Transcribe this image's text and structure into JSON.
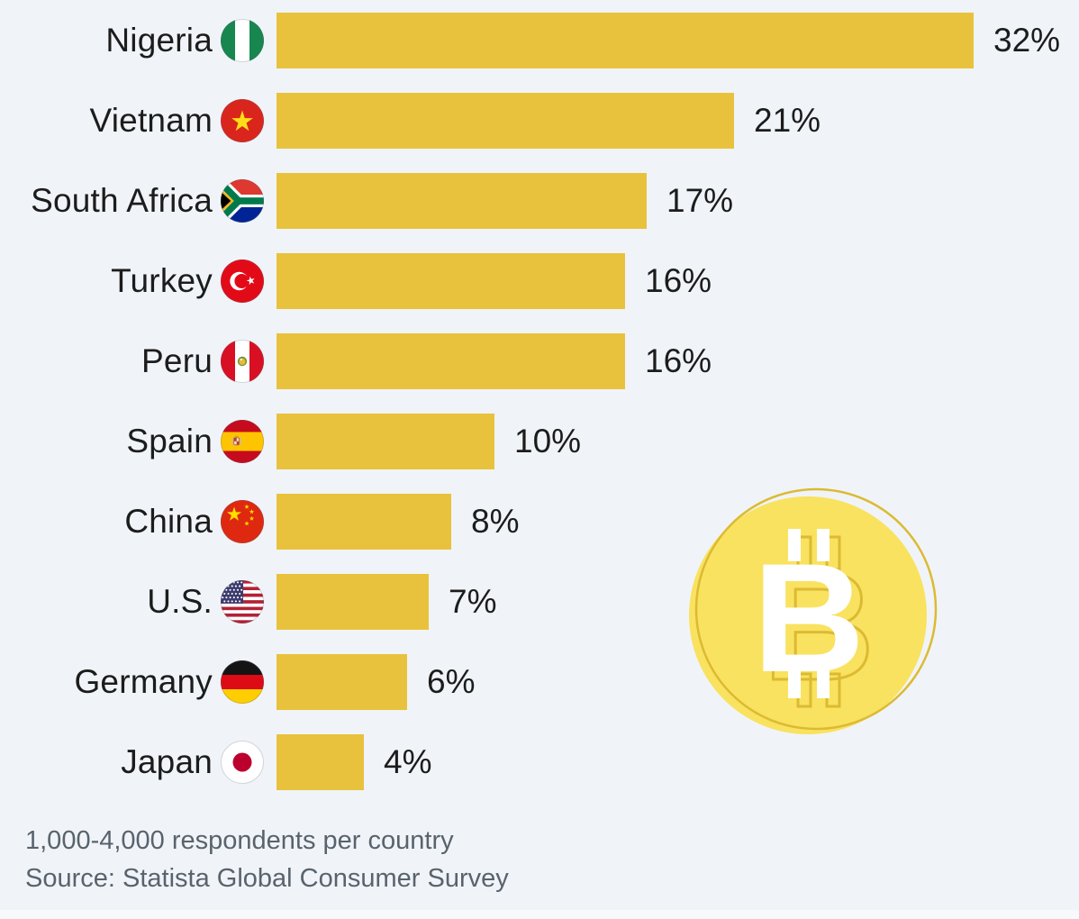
{
  "background_color": "#f0f4f8",
  "chart_data": {
    "type": "bar",
    "orientation": "horizontal",
    "unit": "%",
    "categories": [
      "Nigeria",
      "Vietnam",
      "South Africa",
      "Turkey",
      "Peru",
      "Spain",
      "China",
      "U.S.",
      "Germany",
      "Japan"
    ],
    "values": [
      32,
      21,
      17,
      16,
      16,
      10,
      8,
      7,
      6,
      4
    ],
    "value_labels": [
      "32%",
      "21%",
      "17%",
      "16%",
      "16%",
      "10%",
      "8%",
      "7%",
      "6%",
      "4%"
    ],
    "flag_icons": [
      "flag-nigeria-icon",
      "flag-vietnam-icon",
      "flag-south-africa-icon",
      "flag-turkey-icon",
      "flag-peru-icon",
      "flag-spain-icon",
      "flag-china-icon",
      "flag-us-icon",
      "flag-germany-icon",
      "flag-japan-icon"
    ],
    "bar_color": "#e8c23c",
    "xlim": [
      0,
      33
    ],
    "grid": false,
    "legend": null,
    "notes": [
      "1,000-4,000 respondents per country",
      "Source: Statista Global Consumer Survey"
    ]
  },
  "footer": {
    "line1": "1,000-4,000 respondents per country",
    "line2": "Source: Statista Global Consumer Survey"
  },
  "decoration": {
    "icon": "bitcoin-coin-icon",
    "coin_fill": "#f9e25f",
    "coin_outline": "#dcba33",
    "symbol_color": "#ffffff"
  }
}
